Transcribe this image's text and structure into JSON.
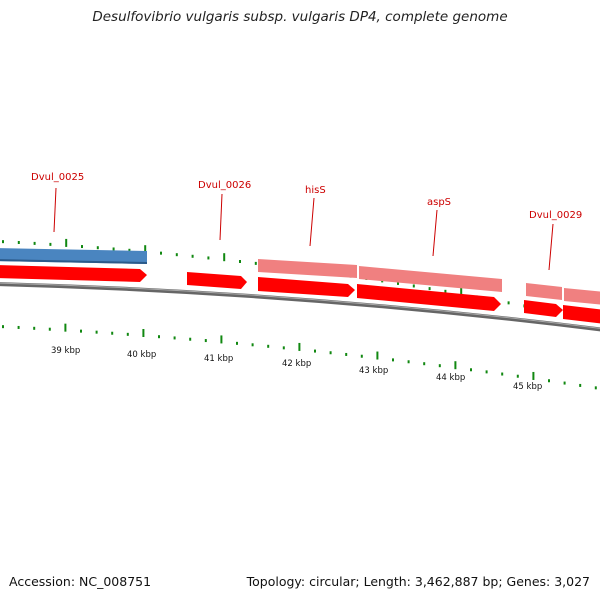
{
  "title": "Desulfovibrio vulgaris subsp. vulgaris DP4, complete genome",
  "footer": {
    "accession": "Accession: NC_008751",
    "summary": "Topology: circular; Length: 3,462,887 bp; Genes: 3,027"
  },
  "colors": {
    "cds_red": "#ff0000",
    "gene_pink": "#f08080",
    "gene_blue": "#4a85c0",
    "tick_green": "#118811",
    "label_red": "#cc0000",
    "backbone_gray": "#777777"
  },
  "gene_labels": [
    "Dvul_0025",
    "Dvul_0026",
    "hisS",
    "aspS",
    "Dvul_0029"
  ],
  "scale_labels": [
    "39 kbp",
    "40 kbp",
    "41 kbp",
    "42 kbp",
    "43 kbp",
    "44 kbp",
    "45 kbp"
  ]
}
